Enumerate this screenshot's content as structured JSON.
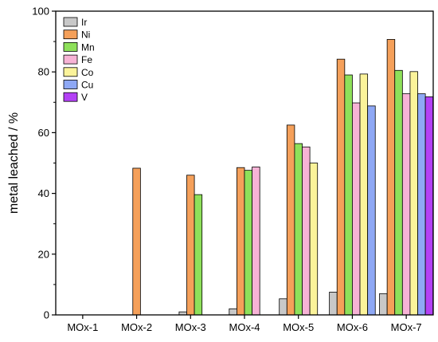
{
  "chart_data": {
    "type": "bar",
    "title": "",
    "xlabel": "",
    "ylabel": "metal leached / %",
    "ylim": [
      0,
      100
    ],
    "yticks": [
      0,
      20,
      40,
      60,
      80,
      100
    ],
    "grid": false,
    "legend_position": "top-left",
    "categories": [
      "MOx-1",
      "MOx-2",
      "MOx-3",
      "MOx-4",
      "MOx-5",
      "MOx-6",
      "MOx-7"
    ],
    "series": [
      {
        "name": "Ir",
        "color": "#c8c8c8",
        "values": [
          null,
          null,
          1.0,
          2.0,
          5.3,
          7.5,
          7.0
        ]
      },
      {
        "name": "Ni",
        "color": "#f5a05a",
        "values": [
          null,
          48.3,
          46.0,
          48.5,
          62.5,
          84.2,
          90.7
        ]
      },
      {
        "name": "Mn",
        "color": "#8ee05a",
        "values": [
          null,
          null,
          39.6,
          47.6,
          56.4,
          79.0,
          80.5
        ]
      },
      {
        "name": "Fe",
        "color": "#f7b3d6",
        "values": [
          null,
          null,
          null,
          48.7,
          55.3,
          69.8,
          72.8
        ]
      },
      {
        "name": "Co",
        "color": "#fbf39a",
        "values": [
          null,
          null,
          null,
          null,
          50.0,
          79.3,
          80.1
        ]
      },
      {
        "name": "Cu",
        "color": "#8ea8f5",
        "values": [
          null,
          null,
          null,
          null,
          null,
          68.8,
          72.8
        ]
      },
      {
        "name": "V",
        "color": "#b341f5",
        "values": [
          null,
          null,
          null,
          null,
          null,
          null,
          71.8
        ]
      }
    ]
  }
}
